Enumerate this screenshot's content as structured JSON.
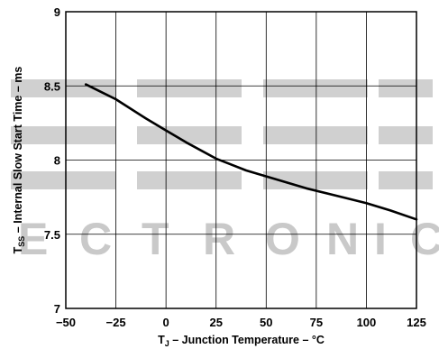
{
  "watermark": {
    "letters": [
      "E",
      "C",
      "T",
      "R",
      "O",
      "N",
      "I",
      "C"
    ]
  },
  "chart_data": {
    "type": "line",
    "title": "",
    "xlabel_main": "T",
    "xlabel_sub": "J",
    "xlabel_rest": " – Junction Temperature – °C",
    "ylabel_main": "T",
    "ylabel_sub": "SS",
    "ylabel_rest": " – Internal Slow Start Time – ms",
    "xlim": [
      -50,
      125
    ],
    "ylim": [
      7,
      9
    ],
    "xticks": [
      -50,
      -25,
      0,
      25,
      50,
      75,
      100,
      125
    ],
    "xtick_labels": [
      "−50",
      "−25",
      "0",
      "25",
      "50",
      "75",
      "100",
      "125"
    ],
    "yticks": [
      7,
      7.5,
      8,
      8.5,
      9
    ],
    "ytick_labels": [
      "7",
      "7.5",
      "8",
      "8.5",
      "9"
    ],
    "grid": true,
    "series": [
      {
        "color": "#000000",
        "x": [
          -40,
          -25,
          -10,
          0,
          10,
          25,
          40,
          55,
          70,
          85,
          100,
          112,
          125
        ],
        "y": [
          8.51,
          8.41,
          8.28,
          8.2,
          8.12,
          8.01,
          7.93,
          7.87,
          7.81,
          7.76,
          7.71,
          7.66,
          7.6
        ]
      }
    ]
  }
}
